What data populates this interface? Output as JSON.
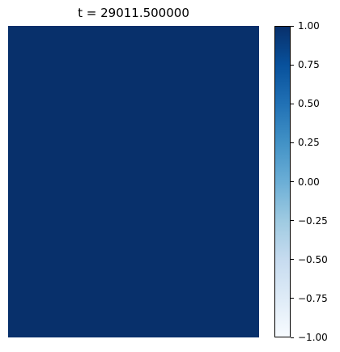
{
  "chart_data": {
    "type": "heatmap",
    "title": "t = 29011.500000",
    "values": [
      [
        1.0
      ]
    ],
    "colormap": "Blues",
    "colormap_stops": [
      "#f7fbff",
      "#deebf7",
      "#c6dbef",
      "#9ecae1",
      "#6baed6",
      "#4292c6",
      "#2171b5",
      "#08519c",
      "#08306b"
    ],
    "clim": [
      -1.0,
      1.0
    ],
    "colorbar": {
      "ticks": [
        1.0,
        0.75,
        0.5,
        0.25,
        0.0,
        -0.25,
        -0.5,
        -0.75,
        -1.0
      ],
      "tick_labels": [
        "1.00",
        "0.75",
        "0.50",
        "0.25",
        "0.00",
        "−0.25",
        "−0.50",
        "−0.75",
        "−1.00"
      ]
    },
    "axes_visible": false
  }
}
